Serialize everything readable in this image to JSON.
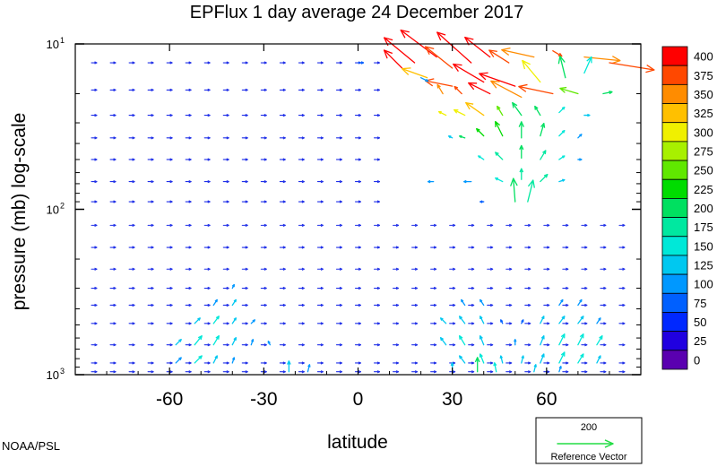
{
  "chart_data": {
    "type": "vector-field",
    "title": "EPFlux  1 day average  24 December 2017",
    "xlabel": "latitude",
    "ylabel": "pressure (mb)  log-scale",
    "xlim": [
      -90,
      90
    ],
    "ylim": [
      1000,
      10
    ],
    "yscale": "log",
    "x_ticks": [
      -60,
      -30,
      0,
      30,
      60
    ],
    "x_tick_labels": [
      "-60",
      "-30",
      "0",
      "30",
      "60"
    ],
    "y_ticks": [
      10,
      100,
      1000
    ],
    "y_tick_base": "10",
    "y_tick_exponents": [
      "1",
      "2",
      "3"
    ],
    "colorbar": {
      "labels": [
        "400",
        "375",
        "350",
        "325",
        "300",
        "275",
        "250",
        "225",
        "200",
        "175",
        "150",
        "125",
        "100",
        "75",
        "50",
        "25",
        "0"
      ],
      "colors": [
        "#ff0000",
        "#ff4800",
        "#ff8c00",
        "#ffc000",
        "#f0f000",
        "#a8f000",
        "#60e800",
        "#00dc00",
        "#00e060",
        "#00e8a0",
        "#00e8d8",
        "#00c8f0",
        "#0098ff",
        "#0060ff",
        "#0028ff",
        "#2000e0",
        "#5a00b0"
      ]
    },
    "reference_vector": {
      "value": "200",
      "label": "Reference Vector"
    },
    "vectors": [
      {
        "lat": 18,
        "p": 13,
        "u": -34,
        "v": 28,
        "m": 400
      },
      {
        "lat": 25,
        "p": 12,
        "u": -40,
        "v": 30,
        "m": 400
      },
      {
        "lat": 30,
        "p": 14,
        "u": -30,
        "v": 24,
        "m": 380
      },
      {
        "lat": 36,
        "p": 13,
        "u": -38,
        "v": 34,
        "m": 400
      },
      {
        "lat": 42,
        "p": 12,
        "u": -28,
        "v": 22,
        "m": 400
      },
      {
        "lat": 48,
        "p": 13,
        "u": -22,
        "v": 14,
        "m": 380
      },
      {
        "lat": 56,
        "p": 12,
        "u": -36,
        "v": 8,
        "m": 360
      },
      {
        "lat": 62,
        "p": 11,
        "u": 10,
        "v": -6,
        "m": 380
      },
      {
        "lat": 72,
        "p": 12,
        "u": 40,
        "v": -4,
        "m": 360
      },
      {
        "lat": 80,
        "p": 13,
        "u": 50,
        "v": -8,
        "m": 380
      },
      {
        "lat": 14,
        "p": 14,
        "u": -20,
        "v": 20,
        "m": 400
      },
      {
        "lat": 22,
        "p": 16,
        "u": -28,
        "v": 10,
        "m": 340
      },
      {
        "lat": 30,
        "p": 18,
        "u": -30,
        "v": 6,
        "m": 380
      },
      {
        "lat": 40,
        "p": 17,
        "u": -34,
        "v": 20,
        "m": 400
      },
      {
        "lat": 50,
        "p": 18,
        "u": -40,
        "v": 14,
        "m": 400
      },
      {
        "lat": 58,
        "p": 17,
        "u": -20,
        "v": 24,
        "m": 300
      },
      {
        "lat": 66,
        "p": 16,
        "u": -6,
        "v": 24,
        "m": 220
      },
      {
        "lat": 72,
        "p": 15,
        "u": 8,
        "v": 18,
        "m": 160
      },
      {
        "lat": 27,
        "p": 20,
        "u": -6,
        "v": 10,
        "m": 360
      },
      {
        "lat": 33,
        "p": 20,
        "u": -8,
        "v": 8,
        "m": 380
      },
      {
        "lat": 42,
        "p": 20,
        "u": -24,
        "v": 12,
        "m": 400
      },
      {
        "lat": 52,
        "p": 21,
        "u": -34,
        "v": 18,
        "m": 360
      },
      {
        "lat": 62,
        "p": 20,
        "u": -38,
        "v": 8,
        "m": 380
      },
      {
        "lat": 70,
        "p": 20,
        "u": -20,
        "v": 6,
        "m": 260
      },
      {
        "lat": 78,
        "p": 20,
        "u": 10,
        "v": 2,
        "m": 200
      },
      {
        "lat": 28,
        "p": 27,
        "u": -8,
        "v": 4,
        "m": 300
      },
      {
        "lat": 34,
        "p": 27,
        "u": -12,
        "v": 6,
        "m": 320
      },
      {
        "lat": 40,
        "p": 27,
        "u": -20,
        "v": 14,
        "m": 340
      },
      {
        "lat": 46,
        "p": 27,
        "u": -6,
        "v": 10,
        "m": 250
      },
      {
        "lat": 52,
        "p": 27,
        "u": -10,
        "v": 14,
        "m": 220
      },
      {
        "lat": 58,
        "p": 27,
        "u": -6,
        "v": 10,
        "m": 200
      },
      {
        "lat": 64,
        "p": 26,
        "u": 6,
        "v": 6,
        "m": 160
      },
      {
        "lat": 72,
        "p": 27,
        "u": 6,
        "v": 0,
        "m": 130
      },
      {
        "lat": 34,
        "p": 37,
        "u": -6,
        "v": 2,
        "m": 220
      },
      {
        "lat": 40,
        "p": 36,
        "u": -8,
        "v": 8,
        "m": 240
      },
      {
        "lat": 46,
        "p": 36,
        "u": -8,
        "v": 16,
        "m": 230
      },
      {
        "lat": 52,
        "p": 37,
        "u": 0,
        "v": 18,
        "m": 220
      },
      {
        "lat": 58,
        "p": 36,
        "u": 4,
        "v": 14,
        "m": 200
      },
      {
        "lat": 64,
        "p": 36,
        "u": 6,
        "v": 6,
        "m": 160
      },
      {
        "lat": 70,
        "p": 37,
        "u": 4,
        "v": 4,
        "m": 120
      },
      {
        "lat": 40,
        "p": 50,
        "u": -6,
        "v": 4,
        "m": 170
      },
      {
        "lat": 46,
        "p": 50,
        "u": -8,
        "v": 8,
        "m": 190
      },
      {
        "lat": 52,
        "p": 49,
        "u": 0,
        "v": 14,
        "m": 200
      },
      {
        "lat": 58,
        "p": 50,
        "u": 6,
        "v": 10,
        "m": 190
      },
      {
        "lat": 64,
        "p": 50,
        "u": 6,
        "v": 4,
        "m": 150
      },
      {
        "lat": 70,
        "p": 50,
        "u": 4,
        "v": 0,
        "m": 120
      },
      {
        "lat": 46,
        "p": 68,
        "u": -8,
        "v": 4,
        "m": 160
      },
      {
        "lat": 52,
        "p": 66,
        "u": 0,
        "v": 12,
        "m": 190
      },
      {
        "lat": 58,
        "p": 68,
        "u": 8,
        "v": 8,
        "m": 180
      },
      {
        "lat": 64,
        "p": 68,
        "u": 6,
        "v": 2,
        "m": 140
      },
      {
        "lat": 50,
        "p": 90,
        "u": -2,
        "v": 26,
        "m": 200
      },
      {
        "lat": 54,
        "p": 90,
        "u": 6,
        "v": 24,
        "m": 190
      },
      {
        "lat": 20,
        "p": 16,
        "u": 8,
        "v": -4,
        "m": 120
      },
      {
        "lat": 30,
        "p": 37,
        "u": -4,
        "v": 2,
        "m": 140
      },
      {
        "lat": 24,
        "p": 68,
        "u": -6,
        "v": 0,
        "m": 100
      },
      {
        "lat": 36,
        "p": 68,
        "u": -8,
        "v": 0,
        "m": 110
      },
      {
        "lat": 40,
        "p": 90,
        "u": -4,
        "v": 0,
        "m": 90
      },
      {
        "lat": 0,
        "p": 13,
        "u": 6,
        "v": 0,
        "m": 90
      },
      {
        "lat": -40,
        "p": 300,
        "u": 2,
        "v": 4,
        "m": 110
      },
      {
        "lat": -46,
        "p": 380,
        "u": 4,
        "v": 6,
        "m": 120
      },
      {
        "lat": -40,
        "p": 380,
        "u": 4,
        "v": 6,
        "m": 130
      },
      {
        "lat": -52,
        "p": 490,
        "u": 6,
        "v": 6,
        "m": 140
      },
      {
        "lat": -46,
        "p": 490,
        "u": 6,
        "v": 8,
        "m": 150
      },
      {
        "lat": -40,
        "p": 490,
        "u": 4,
        "v": 6,
        "m": 130
      },
      {
        "lat": -34,
        "p": 490,
        "u": 4,
        "v": 4,
        "m": 110
      },
      {
        "lat": -58,
        "p": 660,
        "u": 6,
        "v": 6,
        "m": 130
      },
      {
        "lat": -52,
        "p": 660,
        "u": 8,
        "v": 10,
        "m": 160
      },
      {
        "lat": -46,
        "p": 660,
        "u": 6,
        "v": 10,
        "m": 160
      },
      {
        "lat": -40,
        "p": 660,
        "u": 4,
        "v": 8,
        "m": 140
      },
      {
        "lat": -34,
        "p": 660,
        "u": 2,
        "v": 6,
        "m": 120
      },
      {
        "lat": -28,
        "p": 660,
        "u": -2,
        "v": 4,
        "m": 100
      },
      {
        "lat": -58,
        "p": 850,
        "u": 6,
        "v": 6,
        "m": 120
      },
      {
        "lat": -52,
        "p": 850,
        "u": 8,
        "v": 8,
        "m": 150
      },
      {
        "lat": -46,
        "p": 850,
        "u": 4,
        "v": 8,
        "m": 140
      },
      {
        "lat": -40,
        "p": 850,
        "u": 2,
        "v": 6,
        "m": 120
      },
      {
        "lat": -22,
        "p": 960,
        "u": 0,
        "v": 12,
        "m": 140
      },
      {
        "lat": -16,
        "p": 960,
        "u": 2,
        "v": 8,
        "m": 120
      },
      {
        "lat": 34,
        "p": 380,
        "u": -4,
        "v": 6,
        "m": 110
      },
      {
        "lat": 40,
        "p": 380,
        "u": -4,
        "v": 6,
        "m": 110
      },
      {
        "lat": 64,
        "p": 380,
        "u": 4,
        "v": 6,
        "m": 110
      },
      {
        "lat": 70,
        "p": 380,
        "u": 4,
        "v": 6,
        "m": 110
      },
      {
        "lat": 28,
        "p": 490,
        "u": -6,
        "v": 6,
        "m": 130
      },
      {
        "lat": 34,
        "p": 490,
        "u": -6,
        "v": 8,
        "m": 140
      },
      {
        "lat": 40,
        "p": 490,
        "u": -4,
        "v": 8,
        "m": 130
      },
      {
        "lat": 58,
        "p": 490,
        "u": 4,
        "v": 8,
        "m": 130
      },
      {
        "lat": 64,
        "p": 490,
        "u": 6,
        "v": 8,
        "m": 140
      },
      {
        "lat": 70,
        "p": 490,
        "u": 6,
        "v": 8,
        "m": 140
      },
      {
        "lat": 76,
        "p": 490,
        "u": 4,
        "v": 6,
        "m": 120
      },
      {
        "lat": 28,
        "p": 660,
        "u": -6,
        "v": 8,
        "m": 140
      },
      {
        "lat": 34,
        "p": 660,
        "u": -6,
        "v": 10,
        "m": 150
      },
      {
        "lat": 40,
        "p": 660,
        "u": -4,
        "v": 10,
        "m": 140
      },
      {
        "lat": 58,
        "p": 660,
        "u": 4,
        "v": 10,
        "m": 140
      },
      {
        "lat": 64,
        "p": 660,
        "u": 6,
        "v": 12,
        "m": 160
      },
      {
        "lat": 70,
        "p": 660,
        "u": 6,
        "v": 12,
        "m": 160
      },
      {
        "lat": 76,
        "p": 660,
        "u": 6,
        "v": 10,
        "m": 150
      },
      {
        "lat": 34,
        "p": 850,
        "u": -6,
        "v": 8,
        "m": 140
      },
      {
        "lat": 40,
        "p": 850,
        "u": -4,
        "v": 10,
        "m": 150
      },
      {
        "lat": 46,
        "p": 850,
        "u": -2,
        "v": 8,
        "m": 140
      },
      {
        "lat": 52,
        "p": 850,
        "u": 2,
        "v": 8,
        "m": 130
      },
      {
        "lat": 58,
        "p": 850,
        "u": 4,
        "v": 10,
        "m": 140
      },
      {
        "lat": 64,
        "p": 850,
        "u": 6,
        "v": 12,
        "m": 160
      },
      {
        "lat": 70,
        "p": 850,
        "u": 6,
        "v": 10,
        "m": 150
      },
      {
        "lat": 76,
        "p": 850,
        "u": 4,
        "v": 8,
        "m": 130
      },
      {
        "lat": 30,
        "p": 960,
        "u": 0,
        "v": 10,
        "m": 140
      },
      {
        "lat": 38,
        "p": 960,
        "u": 0,
        "v": 16,
        "m": 200
      },
      {
        "lat": 44,
        "p": 960,
        "u": -2,
        "v": 10,
        "m": 150
      },
      {
        "lat": 56,
        "p": 960,
        "u": 2,
        "v": 8,
        "m": 130
      },
      {
        "lat": 64,
        "p": 960,
        "u": 2,
        "v": 6,
        "m": 120
      },
      {
        "lat": 50,
        "p": 660,
        "u": 0,
        "v": 6,
        "m": 100
      },
      {
        "lat": 46,
        "p": 490,
        "u": -2,
        "v": 4,
        "m": 90
      },
      {
        "lat": 52,
        "p": 490,
        "u": 2,
        "v": 4,
        "m": 90
      }
    ]
  }
}
